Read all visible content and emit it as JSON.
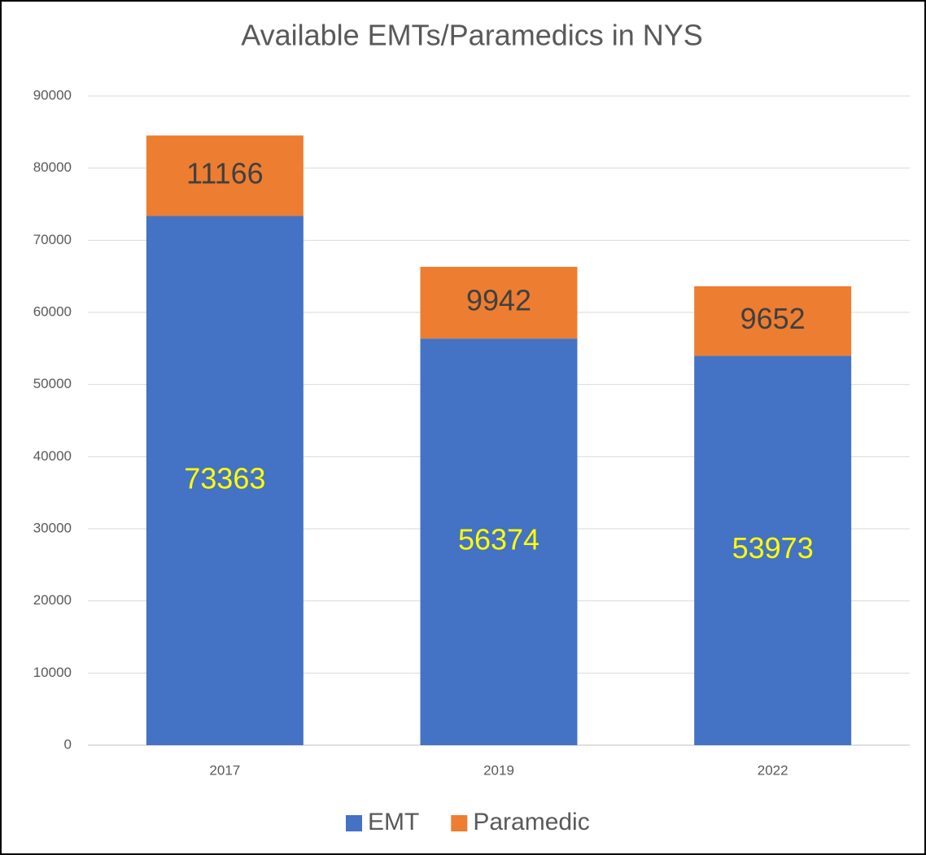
{
  "chart_data": {
    "type": "stacked_bar",
    "title": "Available EMTs/Paramedics in NYS",
    "categories": [
      "2017",
      "2019",
      "2022"
    ],
    "series": [
      {
        "name": "EMT",
        "color": "#4472c4",
        "label_color": "#ffff00",
        "values": [
          73363,
          56374,
          53973
        ]
      },
      {
        "name": "Paramedic",
        "color": "#ed7d31",
        "label_color": "#404040",
        "values": [
          11166,
          9942,
          9652
        ]
      }
    ],
    "ylim": [
      0,
      90000
    ],
    "yticks": [
      0,
      10000,
      20000,
      30000,
      40000,
      50000,
      60000,
      70000,
      80000,
      90000
    ],
    "grid": true,
    "legend": "bottom"
  }
}
